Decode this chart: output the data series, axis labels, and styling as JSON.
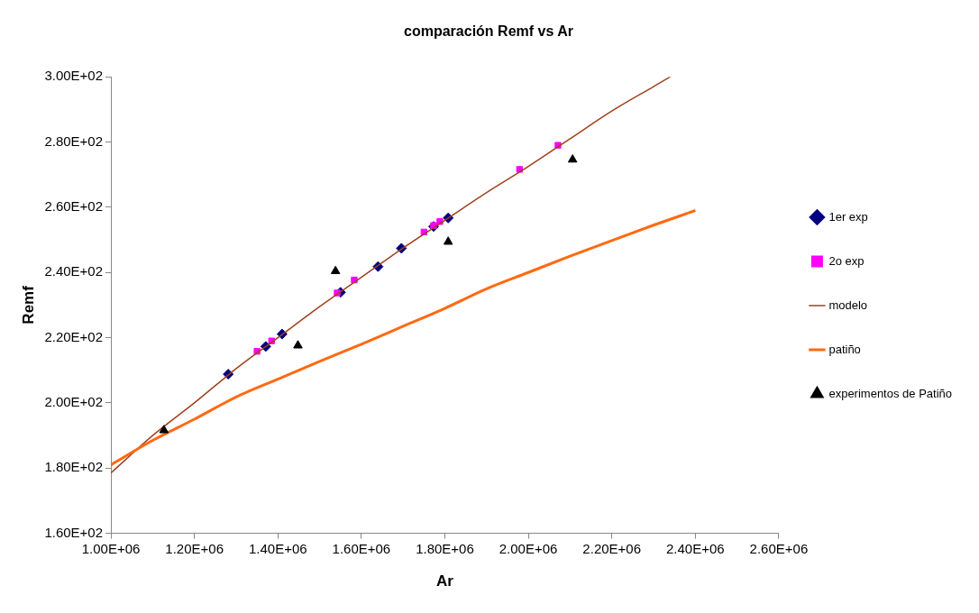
{
  "chart_data": {
    "type": "scatter",
    "title": "comparación Remf vs Ar",
    "xlabel": "Ar",
    "ylabel": "Remf",
    "xlim": [
      1000000,
      2600000
    ],
    "xticks": [
      {
        "value": 1000000,
        "label": "1.00E+06"
      },
      {
        "value": 1200000,
        "label": "1.20E+06"
      },
      {
        "value": 1400000,
        "label": "1.40E+06"
      },
      {
        "value": 1600000,
        "label": "1.60E+06"
      },
      {
        "value": 1800000,
        "label": "1.80E+06"
      },
      {
        "value": 2000000,
        "label": "2.00E+06"
      },
      {
        "value": 2200000,
        "label": "2.20E+06"
      },
      {
        "value": 2400000,
        "label": "2.40E+06"
      },
      {
        "value": 2600000,
        "label": "2.60E+06"
      }
    ],
    "ylim": [
      160,
      300
    ],
    "yticks": [
      {
        "value": 160,
        "label": "1.60E+02"
      },
      {
        "value": 180,
        "label": "1.80E+02"
      },
      {
        "value": 200,
        "label": "2.00E+02"
      },
      {
        "value": 220,
        "label": "2.20E+02"
      },
      {
        "value": 240,
        "label": "2.40E+02"
      },
      {
        "value": 260,
        "label": "2.60E+02"
      },
      {
        "value": 280,
        "label": "2.80E+02"
      },
      {
        "value": 300,
        "label": "3.00E+02"
      }
    ],
    "grid": false,
    "legend": "right",
    "series": [
      {
        "name": "1er exp",
        "marker": "diamond",
        "color": "#000080",
        "x": [
          1281000,
          1371000,
          1410000,
          1550000,
          1640000,
          1696000,
          1773000,
          1808000
        ],
        "values": [
          208.8,
          217.3,
          221.1,
          233.9,
          241.8,
          247.4,
          254.1,
          256.7
        ]
      },
      {
        "name": "2o exp",
        "marker": "square",
        "color": "#ff00ff",
        "x": [
          1350000,
          1385000,
          1542000,
          1583000,
          1750000,
          1773000,
          1788000,
          1979000,
          2071000
        ],
        "values": [
          215.8,
          219.0,
          233.7,
          237.7,
          252.4,
          254.4,
          255.6,
          271.6,
          279.0
        ]
      },
      {
        "name": "modelo",
        "type": "line",
        "marker": "none",
        "color": "#a0401a",
        "x": [
          1000000,
          1100000,
          1200000,
          1300000,
          1400000,
          1500000,
          1600000,
          1700000,
          1800000,
          1900000,
          2000000,
          2100000,
          2200000,
          2300000,
          2340000
        ],
        "values": [
          178.5,
          190,
          200,
          210.5,
          220,
          229.5,
          238.5,
          247.5,
          256,
          264.5,
          272.5,
          281,
          289.5,
          297,
          300
        ]
      },
      {
        "name": "patiño",
        "type": "line",
        "marker": "none",
        "color": "#ff6a10",
        "x": [
          1000000,
          1100000,
          1200000,
          1300000,
          1400000,
          1500000,
          1600000,
          1700000,
          1800000,
          1900000,
          2000000,
          2100000,
          2200000,
          2300000,
          2400000
        ],
        "values": [
          181,
          188.5,
          195,
          201.8,
          207.3,
          212.7,
          218,
          223.5,
          229,
          235,
          240,
          245,
          249.8,
          254.5,
          259
        ]
      },
      {
        "name": "experimentos de Patiño",
        "marker": "triangle",
        "color": "#000000",
        "x": [
          1127000,
          1448000,
          1538000,
          1808000,
          2106000
        ],
        "values": [
          191.6,
          217.6,
          240.4,
          249.4,
          274.6
        ]
      }
    ]
  }
}
